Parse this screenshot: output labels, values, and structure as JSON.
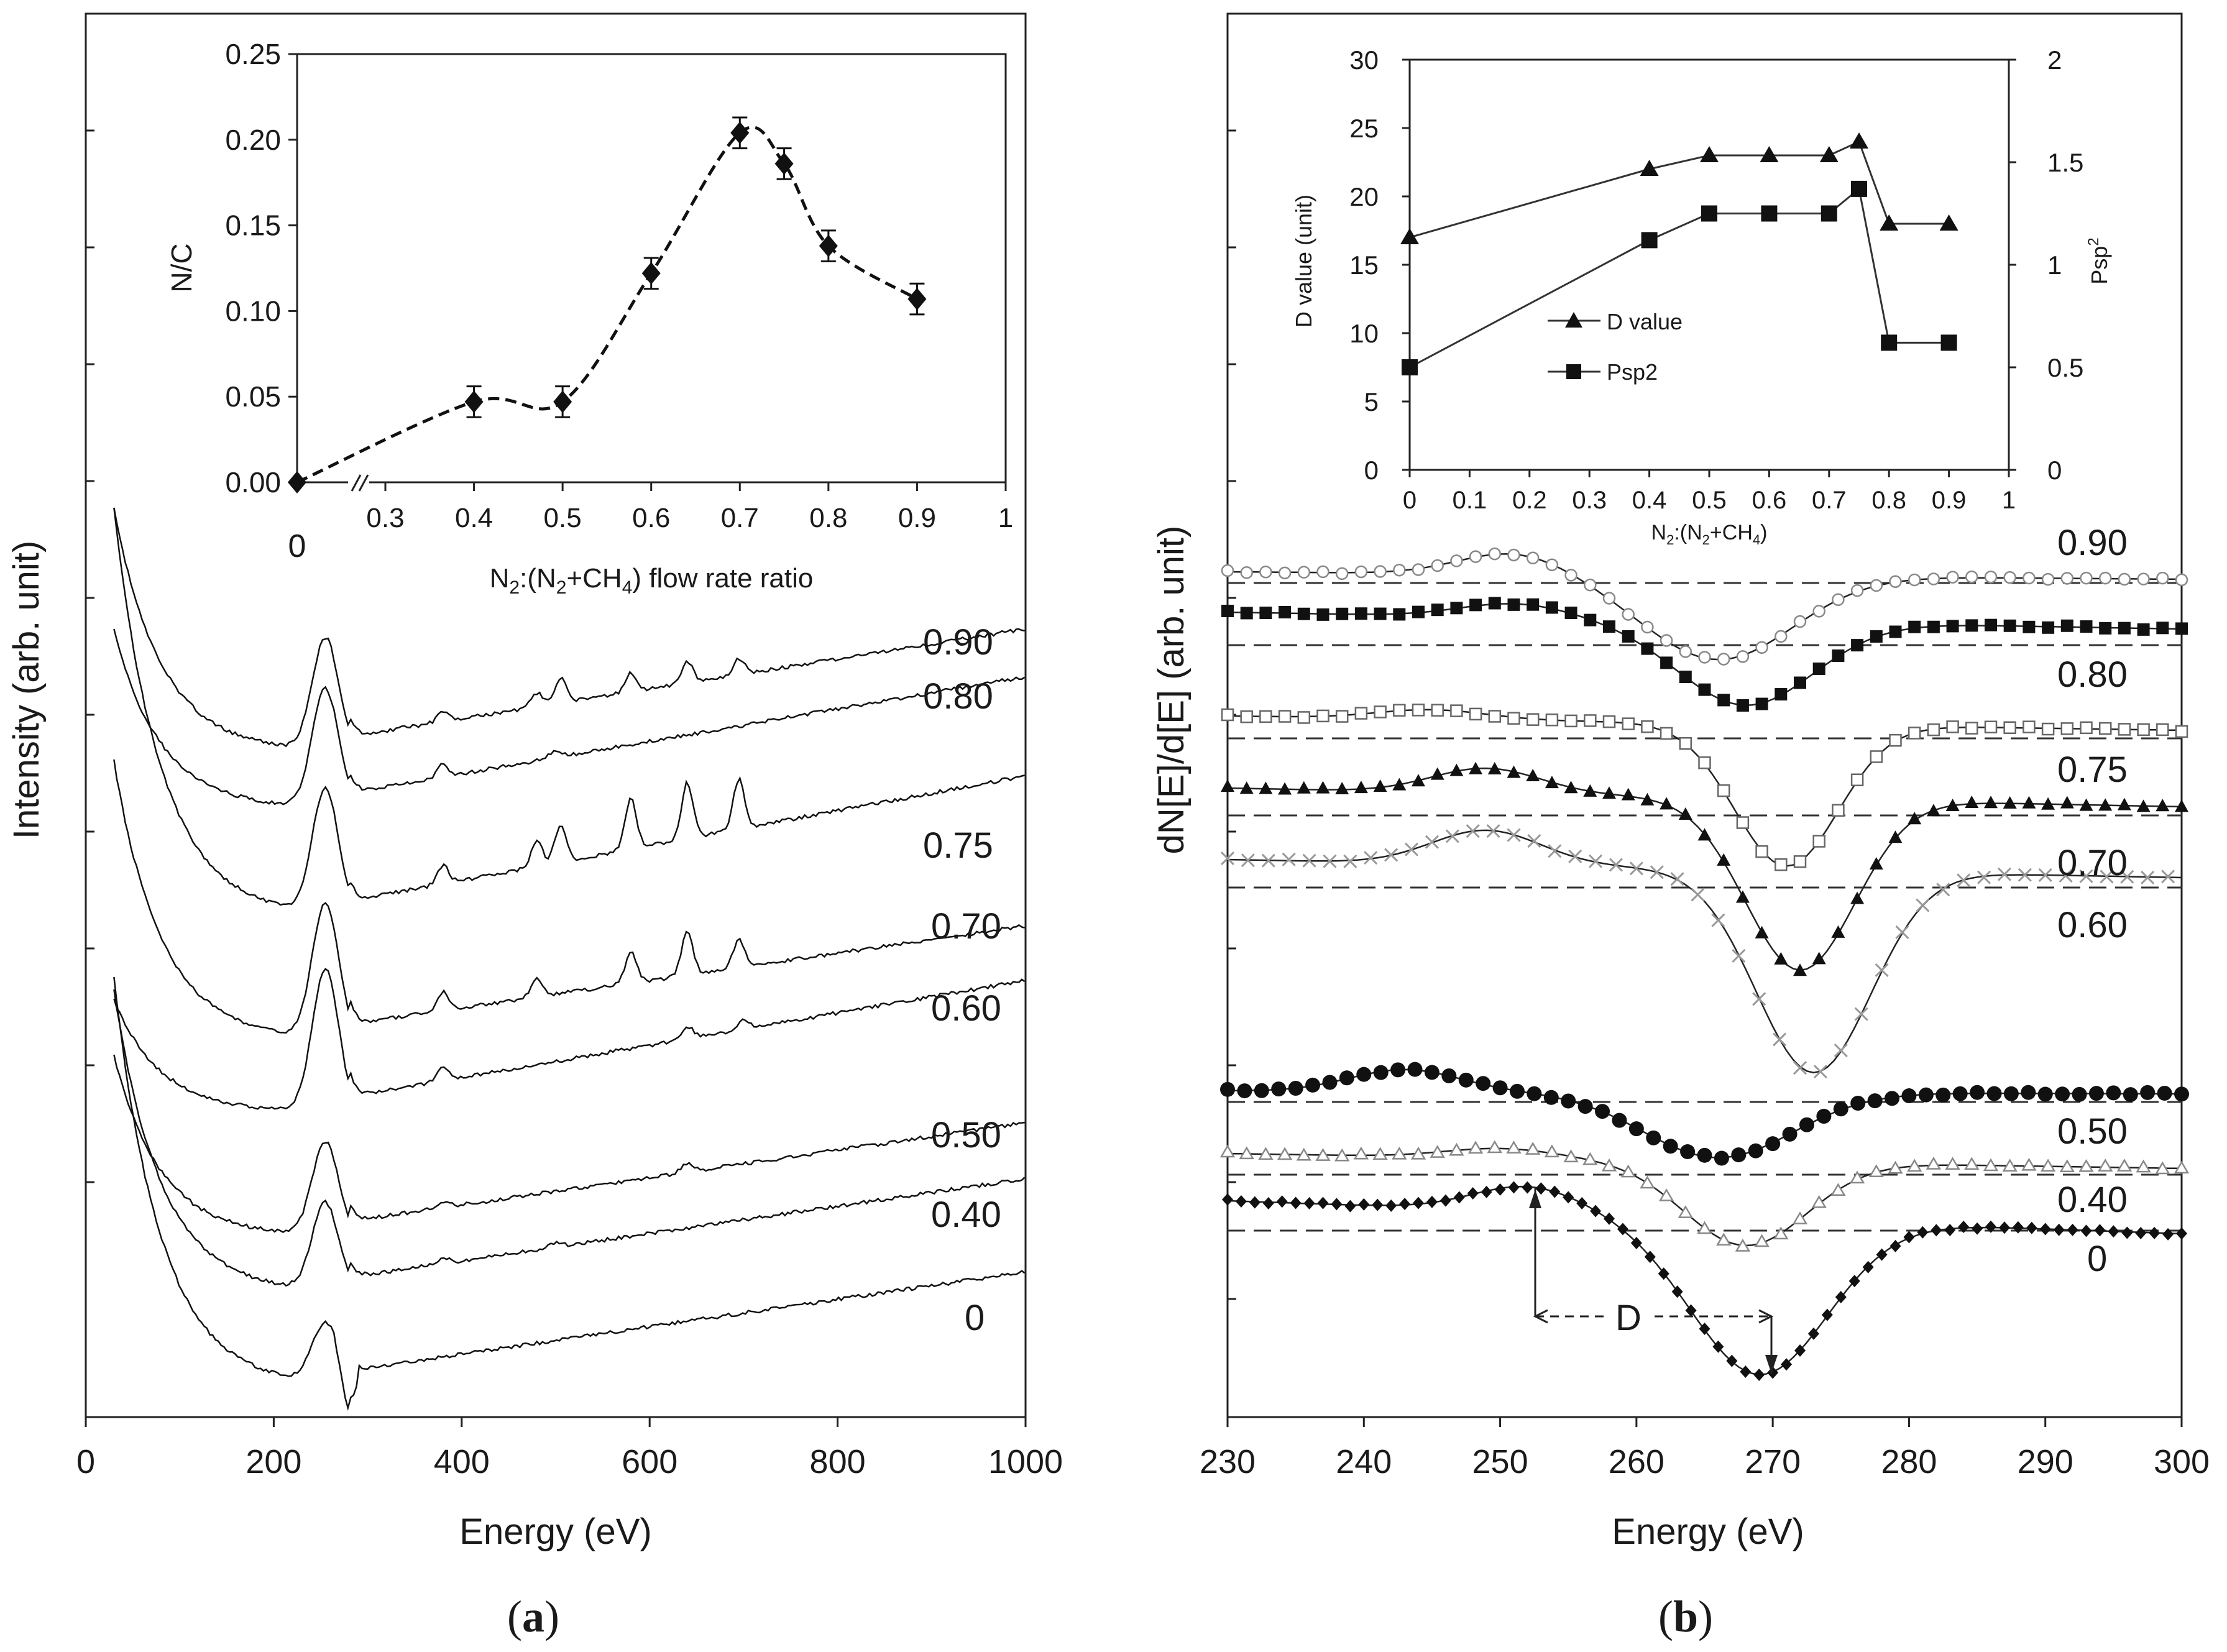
{
  "panel_a": {
    "caption_open": "(",
    "caption_letter": "a",
    "caption_close": ")",
    "main": {
      "type": "line",
      "xlabel": "Energy (eV)",
      "ylabel": "Intensity (arb. unit)",
      "xlim": [
        0,
        1000
      ],
      "x_ticks": [
        "0",
        "200",
        "400",
        "600",
        "800",
        "1000"
      ],
      "series": [
        {
          "name": "0.90"
        },
        {
          "name": "0.80"
        },
        {
          "name": "0.75"
        },
        {
          "name": "0.70"
        },
        {
          "name": "0.60"
        },
        {
          "name": "0.50"
        },
        {
          "name": "0.40"
        },
        {
          "name": "0"
        }
      ]
    },
    "inset": {
      "type": "line",
      "ylabel": "N/C",
      "xlabel": "N2:(N2+CH4)  flow rate ratio",
      "ylim": [
        0,
        0.25
      ],
      "y_ticks": [
        "0.00",
        "0.05",
        "0.10",
        "0.15",
        "0.20",
        "0.25"
      ],
      "x_ticks": [
        "0.3",
        "0.4",
        "0.5",
        "0.6",
        "0.7",
        "0.8",
        "0.9",
        "1"
      ],
      "x_zero_label": "0",
      "x": [
        0,
        0.4,
        0.5,
        0.6,
        0.7,
        0.75,
        0.8,
        0.9
      ],
      "values": [
        0.0,
        0.047,
        0.047,
        0.122,
        0.204,
        0.186,
        0.138,
        0.107
      ],
      "error": 0.009
    }
  },
  "panel_b": {
    "caption_open": "(",
    "caption_letter": "b",
    "caption_close": ")",
    "main": {
      "type": "line",
      "xlabel": "Energy (eV)",
      "ylabel": "dN[E]/d[E] (arb. unit)",
      "xlim": [
        230,
        300
      ],
      "x_ticks": [
        "230",
        "240",
        "250",
        "260",
        "270",
        "280",
        "290",
        "300"
      ],
      "series": [
        {
          "name": "0.90"
        },
        {
          "name": "0.80"
        },
        {
          "name": "0.75"
        },
        {
          "name": "0.70"
        },
        {
          "name": "0.60"
        },
        {
          "name": "0.50"
        },
        {
          "name": "0.40"
        },
        {
          "name": "0"
        }
      ],
      "annotation": "D"
    },
    "inset": {
      "type": "line",
      "xlabel": "N2:(N2+CH4)",
      "ylabel_left": "D value (unit)",
      "ylabel_right": "Psp2",
      "ylim_left": [
        0,
        30
      ],
      "ylim_right": [
        0,
        2
      ],
      "y_ticks_left": [
        "0",
        "5",
        "10",
        "15",
        "20",
        "25",
        "30"
      ],
      "y_ticks_right": [
        "0",
        "0.5",
        "1",
        "1.5",
        "2"
      ],
      "x_ticks": [
        "0",
        "0.1",
        "0.2",
        "0.3",
        "0.4",
        "0.5",
        "0.6",
        "0.7",
        "0.8",
        "0.9",
        "1"
      ],
      "x": [
        0,
        0.4,
        0.5,
        0.6,
        0.7,
        0.75,
        0.8,
        0.9
      ],
      "series": [
        {
          "name": "D value",
          "axis": "left",
          "values": [
            17,
            22,
            23,
            23,
            23,
            24,
            18,
            18
          ]
        },
        {
          "name": "Psp2",
          "axis": "right",
          "values": [
            0.5,
            1.12,
            1.25,
            1.25,
            1.25,
            1.37,
            0.62,
            0.62
          ]
        }
      ]
    }
  }
}
